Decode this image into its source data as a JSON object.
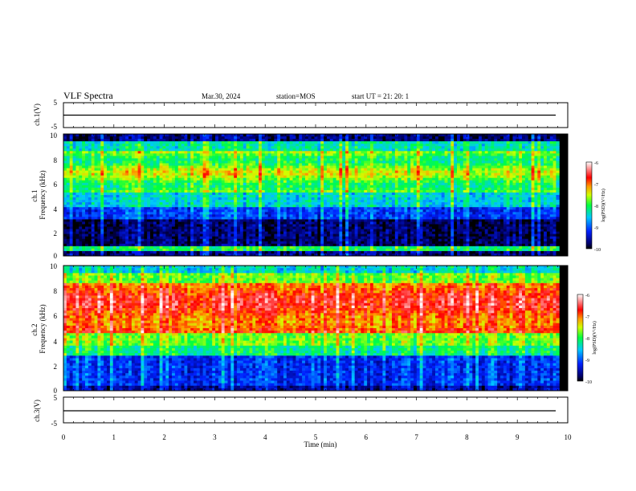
{
  "header": {
    "title": "VLF Spectra",
    "date": "Mar.30, 2024",
    "station": "station=MOS",
    "start": "start  UT =   21: 20: 1"
  },
  "chart_data": [
    {
      "type": "line",
      "ylabel": "ch.1(V)",
      "ylim": [
        -5,
        5
      ],
      "yticks": [
        "5",
        "-5"
      ],
      "y": [
        -0.1
      ]
    },
    {
      "type": "heatmap",
      "ylabel": "ch.1\nFrequency (kHz)",
      "ylim": [
        0,
        10
      ],
      "yticks": [
        "0",
        "2",
        "4",
        "6",
        "8",
        "10"
      ],
      "colorbar": {
        "label": "log(PSD)(V²/Hz)",
        "ticks": [
          "-6",
          "-7",
          "-8",
          "-9",
          "-10"
        ],
        "range": [
          -10,
          -6
        ]
      }
    },
    {
      "type": "heatmap",
      "ylabel": "ch.2\nFrequency (kHz)",
      "ylim": [
        0,
        10
      ],
      "yticks": [
        "0",
        "2",
        "4",
        "6",
        "8",
        "10"
      ],
      "colorbar": {
        "label": "log(PSD)(V²/Hz)",
        "ticks": [
          "-6",
          "-7",
          "-8",
          "-9",
          "-10"
        ],
        "range": [
          -10,
          -6
        ]
      }
    },
    {
      "type": "line",
      "ylabel": "ch.3(V)",
      "ylim": [
        -5,
        5
      ],
      "yticks": [
        "5",
        "-5"
      ],
      "y": [
        -0.1
      ]
    }
  ],
  "xaxis": {
    "label": "Time  (min)",
    "xlim": [
      0,
      10
    ],
    "ticks": [
      "0",
      "1",
      "2",
      "3",
      "4",
      "5",
      "6",
      "7",
      "8",
      "9",
      "10"
    ],
    "data_end": 9.83
  },
  "colors": {
    "background": "#ffffff",
    "axis": "#000000"
  }
}
